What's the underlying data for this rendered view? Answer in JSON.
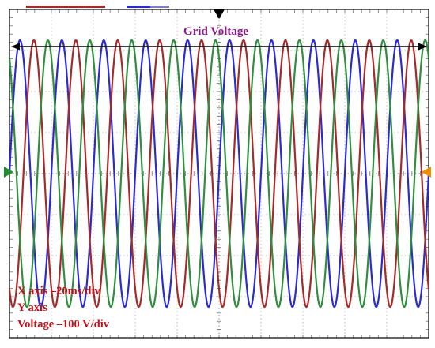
{
  "chart_data": {
    "type": "line",
    "title": "Grid Voltage",
    "xlabel": "X axis –20ms/div",
    "ylabel_line1": "Y axis",
    "ylabel_line2": "Voltage –100 V/div",
    "x_unit": "ms",
    "y_unit": "V",
    "x_per_div": 20,
    "y_per_div": 100,
    "xlim": [
      0,
      200
    ],
    "ylim": [
      -400,
      400
    ],
    "grid": true,
    "frequency_hz": 50,
    "amplitude_v": 325,
    "series": [
      {
        "color": "#2b2bd0",
        "phase_deg": 0
      },
      {
        "color": "#a52a2a",
        "phase_deg": -120
      },
      {
        "color": "#2f8f3f",
        "phase_deg": 120
      }
    ],
    "colors": {
      "background": "#ffffff",
      "grid": "#aaaaaa",
      "frame": "#222222",
      "title": "#8b1a8b",
      "annotation": "#c0101a",
      "marker_left": "#1e8f2e",
      "marker_right": "#f08c00",
      "marker_top": "#000000"
    }
  }
}
